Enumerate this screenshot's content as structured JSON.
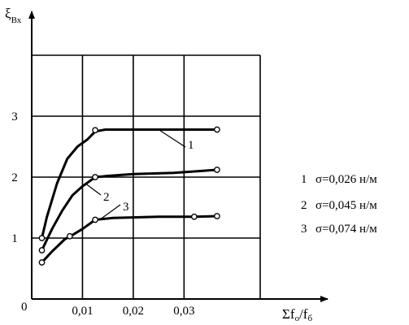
{
  "chart_data": {
    "type": "line",
    "ylabel": {
      "main": "ξ",
      "sub": "Вх"
    },
    "xlabel": {
      "main": "Σf",
      "sub1": "о",
      "mid": "/f",
      "sub2": "б"
    },
    "origin_label": "0",
    "xlim": [
      0,
      0.045
    ],
    "ylim": [
      0,
      4
    ],
    "x_ticks": [
      {
        "value": 0.01,
        "label": "0,01"
      },
      {
        "value": 0.02,
        "label": "0,02"
      },
      {
        "value": 0.03,
        "label": "0,03"
      }
    ],
    "y_ticks": [
      {
        "value": 1,
        "label": "1"
      },
      {
        "value": 2,
        "label": "2"
      },
      {
        "value": 3,
        "label": "3"
      }
    ],
    "grid": true,
    "series": [
      {
        "name": "1",
        "curve": [
          [
            0.002,
            1.0
          ],
          [
            0.003,
            1.35
          ],
          [
            0.005,
            1.9
          ],
          [
            0.007,
            2.3
          ],
          [
            0.009,
            2.5
          ],
          [
            0.011,
            2.62
          ],
          [
            0.0125,
            2.75
          ],
          [
            0.0145,
            2.78
          ],
          [
            0.02,
            2.78
          ],
          [
            0.026,
            2.78
          ],
          [
            0.0365,
            2.78
          ]
        ],
        "markers": [
          [
            0.002,
            1.0
          ],
          [
            0.0125,
            2.77
          ],
          [
            0.0365,
            2.78
          ]
        ]
      },
      {
        "name": "2",
        "curve": [
          [
            0.002,
            0.8
          ],
          [
            0.004,
            1.15
          ],
          [
            0.006,
            1.45
          ],
          [
            0.008,
            1.7
          ],
          [
            0.01,
            1.85
          ],
          [
            0.0125,
            2.0
          ],
          [
            0.015,
            2.02
          ],
          [
            0.02,
            2.05
          ],
          [
            0.028,
            2.07
          ],
          [
            0.0365,
            2.12
          ]
        ],
        "markers": [
          [
            0.002,
            0.8
          ],
          [
            0.0125,
            2.0
          ],
          [
            0.0365,
            2.12
          ]
        ]
      },
      {
        "name": "3",
        "curve": [
          [
            0.002,
            0.6
          ],
          [
            0.004,
            0.78
          ],
          [
            0.0065,
            0.98
          ],
          [
            0.008,
            1.05
          ],
          [
            0.01,
            1.15
          ],
          [
            0.0125,
            1.3
          ],
          [
            0.016,
            1.33
          ],
          [
            0.025,
            1.35
          ],
          [
            0.032,
            1.35
          ],
          [
            0.0365,
            1.36
          ]
        ],
        "markers": [
          [
            0.002,
            0.6
          ],
          [
            0.0075,
            1.03
          ],
          [
            0.0125,
            1.3
          ],
          [
            0.032,
            1.35
          ],
          [
            0.0365,
            1.36
          ]
        ]
      }
    ],
    "legend": [
      {
        "num": "1",
        "text": "σ=0,026 н/м"
      },
      {
        "num": "2",
        "text": "σ=0,045 н/м"
      },
      {
        "num": "3",
        "text": "σ=0,074 н/м"
      }
    ]
  }
}
